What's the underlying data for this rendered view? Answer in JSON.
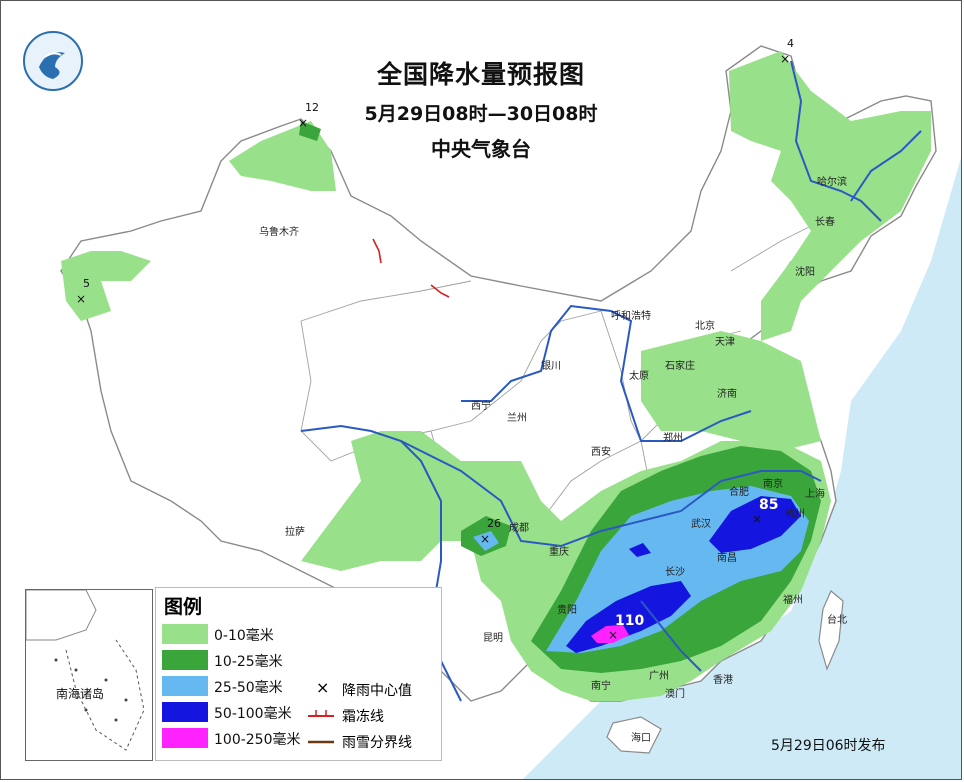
{
  "title": "全国降水量预报图",
  "period": "5月29日08时—30日08时",
  "issuer": "中央气象台",
  "issued": "5月29日06时发布",
  "logo_name": "cma-logo",
  "colors": {
    "sea": "#cfeaf7",
    "land": "#ffffff",
    "border": "#8a8a8a",
    "river": "#2b59c3",
    "rain_0_10": "#98e08a",
    "rain_10_25": "#3aa53a",
    "rain_25_50": "#66b8f0",
    "rain_50_100": "#1515e0",
    "rain_100_250": "#ff22ff",
    "frost": "#d42020",
    "rain_snow": "#6b3a12"
  },
  "legend": {
    "title": "图例",
    "classes": [
      {
        "label": "0-10毫米",
        "color": "#98e08a"
      },
      {
        "label": "10-25毫米",
        "color": "#3aa53a"
      },
      {
        "label": "25-50毫米",
        "color": "#66b8f0"
      },
      {
        "label": "50-100毫米",
        "color": "#1515e0"
      },
      {
        "label": "100-250毫米",
        "color": "#ff22ff"
      }
    ],
    "symbols": [
      {
        "label": "降雨中心值",
        "symbol": "x-mark-icon"
      },
      {
        "label": "霜冻线",
        "symbol": "frost-line-icon"
      },
      {
        "label": "雨雪分界线",
        "symbol": "rain-snow-line-icon"
      }
    ]
  },
  "inset_label": "南海诸岛",
  "rain_centers": [
    {
      "value": "4"
    },
    {
      "value": "12"
    },
    {
      "value": "5"
    },
    {
      "value": "26"
    },
    {
      "value": "85"
    },
    {
      "value": "110"
    }
  ],
  "cities": [
    "乌鲁木齐",
    "哈尔滨",
    "长春",
    "沈阳",
    "呼和浩特",
    "北京",
    "天津",
    "石家庄",
    "太原",
    "济南",
    "银川",
    "西宁",
    "兰州",
    "郑州",
    "西安",
    "合肥",
    "南京",
    "上海",
    "杭州",
    "武汉",
    "成都",
    "重庆",
    "拉萨",
    "长沙",
    "南昌",
    "贵阳",
    "福州",
    "台北",
    "昆明",
    "南宁",
    "广州",
    "香港",
    "澳门",
    "海口"
  ]
}
